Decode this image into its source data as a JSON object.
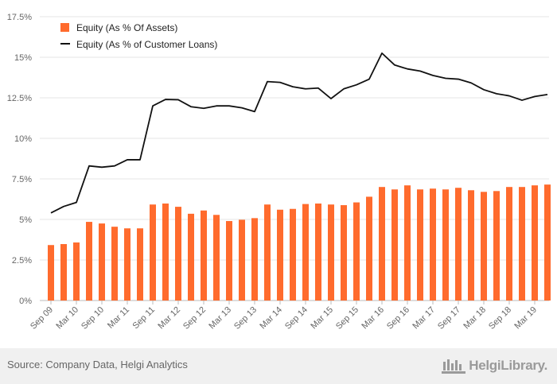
{
  "chart_data": {
    "type": "bar+line",
    "categories": [
      "Sep 09",
      "Dec 09",
      "Mar 10",
      "Jun 10",
      "Sep 10",
      "Dec 10",
      "Mar 11",
      "Jun 11",
      "Sep 11",
      "Dec 11",
      "Mar 12",
      "Jun 12",
      "Sep 12",
      "Dec 12",
      "Mar 13",
      "Jun 13",
      "Sep 13",
      "Dec 13",
      "Mar 14",
      "Jun 14",
      "Sep 14",
      "Dec 14",
      "Mar 15",
      "Jun 15",
      "Sep 15",
      "Dec 15",
      "Mar 16",
      "Jun 16",
      "Sep 16",
      "Dec 16",
      "Mar 17",
      "Jun 17",
      "Sep 17",
      "Dec 17",
      "Mar 18",
      "Jun 18",
      "Sep 18",
      "Dec 18",
      "Mar 19",
      "Jun 19"
    ],
    "x_tick_labels": [
      "Sep 09",
      "Mar 10",
      "Sep 10",
      "Mar 11",
      "Sep 11",
      "Mar 12",
      "Sep 12",
      "Mar 13",
      "Sep 13",
      "Mar 14",
      "Sep 14",
      "Mar 15",
      "Sep 15",
      "Mar 16",
      "Sep 16",
      "Mar 17",
      "Sep 17",
      "Mar 18",
      "Sep 18",
      "Mar 19"
    ],
    "y_ticks": [
      "0%",
      "2.5%",
      "5%",
      "7.5%",
      "10%",
      "12.5%",
      "15%",
      "17.5%"
    ],
    "ylim": [
      0,
      17.5
    ],
    "grid": true,
    "legend_position": "top-left",
    "series": [
      {
        "name": "Equity (As % Of Assets)",
        "kind": "bar",
        "color": "#ff6b2d",
        "values": [
          3.42,
          3.48,
          3.58,
          4.85,
          4.75,
          4.55,
          4.45,
          4.45,
          5.92,
          5.98,
          5.78,
          5.35,
          5.55,
          5.28,
          4.9,
          4.98,
          5.08,
          5.92,
          5.6,
          5.65,
          5.95,
          5.98,
          5.92,
          5.88,
          6.05,
          6.4,
          7.0,
          6.85,
          7.1,
          6.85,
          6.9,
          6.85,
          6.95,
          6.8,
          6.7,
          6.75,
          7.0,
          7.0,
          7.1,
          7.15
        ]
      },
      {
        "name": "Equity (As % of Customer Loans)",
        "kind": "line",
        "color": "#111111",
        "values": [
          5.4,
          5.8,
          6.05,
          8.3,
          8.22,
          8.3,
          8.68,
          8.68,
          12.0,
          12.4,
          12.38,
          11.95,
          11.85,
          12.0,
          12.0,
          11.88,
          11.65,
          13.5,
          13.45,
          13.18,
          13.05,
          13.1,
          12.45,
          13.05,
          13.3,
          13.65,
          15.25,
          14.52,
          14.28,
          14.15,
          13.88,
          13.7,
          13.65,
          13.42,
          13.0,
          12.75,
          12.62,
          12.35,
          12.58,
          12.7
        ]
      }
    ]
  },
  "footer": {
    "source": "Source: Company Data, Helgi Analytics",
    "brand": "HelgiLibrary."
  }
}
